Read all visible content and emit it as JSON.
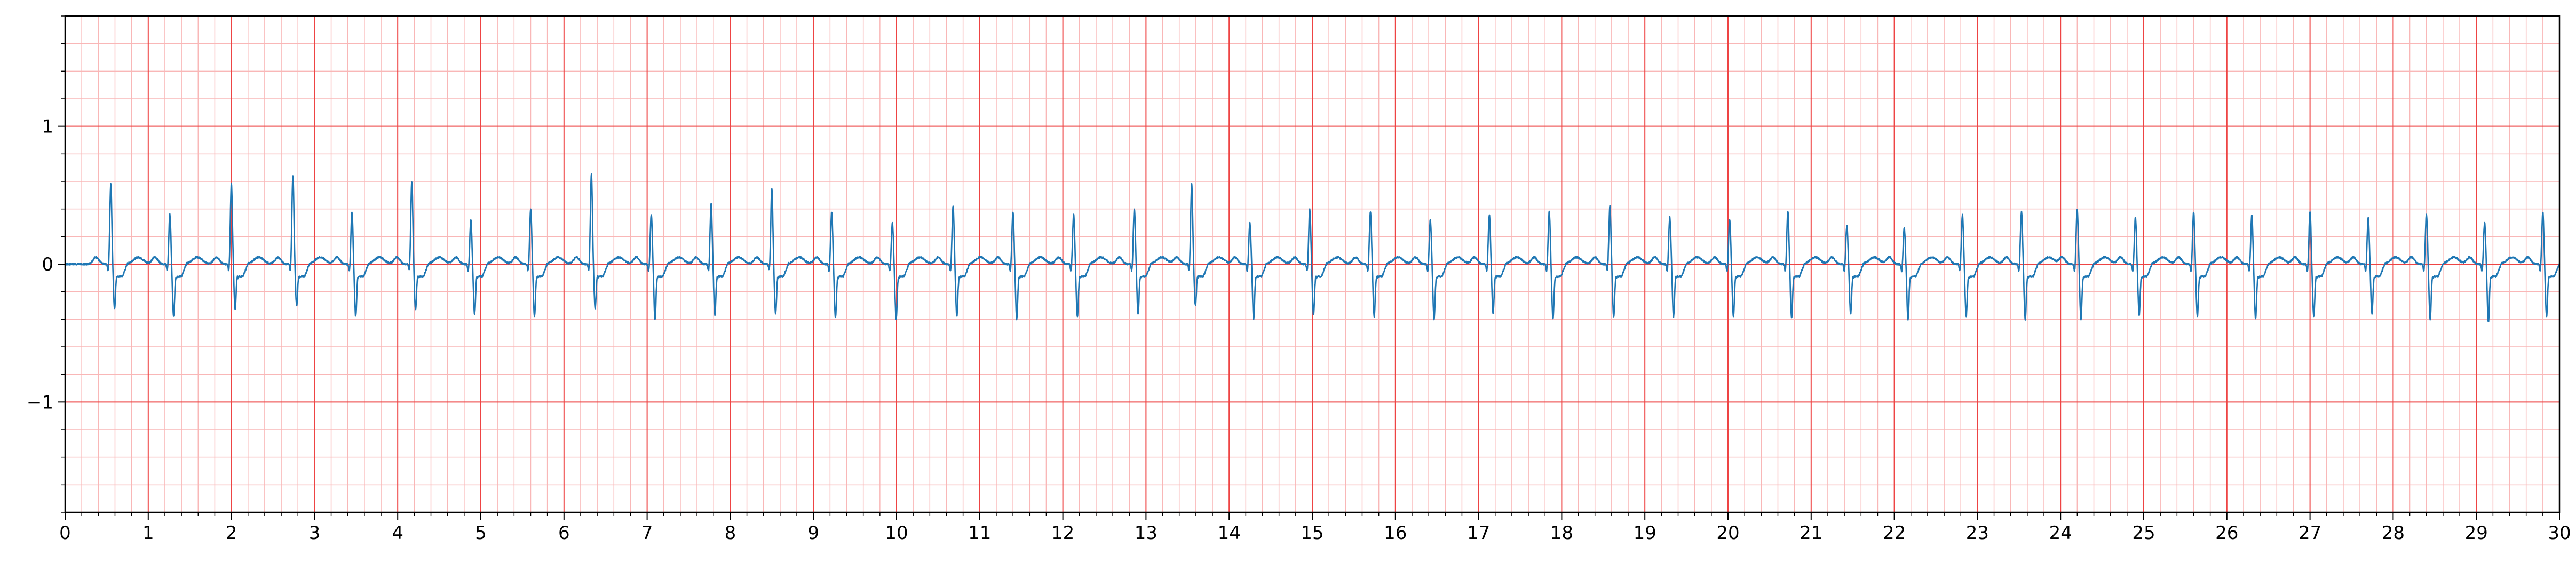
{
  "chart_data": {
    "type": "line",
    "title": "",
    "xlabel": "",
    "ylabel": "",
    "xlim": [
      0,
      30
    ],
    "ylim": [
      -1.8,
      1.8
    ],
    "x_ticks": [
      0,
      1,
      2,
      3,
      4,
      5,
      6,
      7,
      8,
      9,
      10,
      11,
      12,
      13,
      14,
      15,
      16,
      17,
      18,
      19,
      20,
      21,
      22,
      23,
      24,
      25,
      26,
      27,
      28,
      29,
      30
    ],
    "x_tick_labels": [
      "0",
      "1",
      "2",
      "3",
      "4",
      "5",
      "6",
      "7",
      "8",
      "9",
      "10",
      "11",
      "12",
      "13",
      "14",
      "15",
      "16",
      "17",
      "18",
      "19",
      "20",
      "21",
      "22",
      "23",
      "24",
      "25",
      "26",
      "27",
      "28",
      "29",
      "30"
    ],
    "y_ticks": [
      -1,
      0,
      1
    ],
    "y_tick_labels": [
      "−1",
      "0",
      "1"
    ],
    "grid": "ECG paper: major grid every 1 s and 1 unit, minor grid every 0.2 s and 0.2 units",
    "legend": "none",
    "colors": {
      "trace": "#1f77b4",
      "grid_major": "#ee4444",
      "grid_minor": "#f9b7b7",
      "axes": "#000000"
    },
    "series": [
      {
        "name": "",
        "beat_times": [
          0.55,
          1.26,
          2.0,
          2.74,
          3.45,
          4.17,
          4.88,
          5.6,
          6.33,
          7.05,
          7.77,
          8.5,
          9.22,
          9.95,
          10.68,
          11.4,
          12.13,
          12.86,
          13.55,
          14.25,
          14.97,
          15.7,
          16.42,
          17.13,
          17.85,
          18.58,
          19.3,
          20.02,
          20.72,
          21.43,
          22.12,
          22.82,
          23.53,
          24.2,
          24.9,
          25.6,
          26.3,
          27.0,
          27.7,
          28.4,
          29.1,
          29.8
        ],
        "r_peaks": [
          0.58,
          0.36,
          0.58,
          0.64,
          0.38,
          0.6,
          0.32,
          0.4,
          0.65,
          0.36,
          0.44,
          0.55,
          0.38,
          0.3,
          0.42,
          0.38,
          0.36,
          0.4,
          0.58,
          0.3,
          0.4,
          0.38,
          0.32,
          0.36,
          0.38,
          0.42,
          0.34,
          0.32,
          0.38,
          0.28,
          0.26,
          0.36,
          0.38,
          0.4,
          0.34,
          0.38,
          0.36,
          0.38,
          0.34,
          0.36,
          0.3,
          0.38
        ],
        "s_troughs": [
          -0.32,
          -0.38,
          -0.33,
          -0.3,
          -0.38,
          -0.33,
          -0.36,
          -0.38,
          -0.32,
          -0.4,
          -0.37,
          -0.36,
          -0.39,
          -0.4,
          -0.38,
          -0.4,
          -0.38,
          -0.36,
          -0.3,
          -0.4,
          -0.37,
          -0.38,
          -0.4,
          -0.36,
          -0.4,
          -0.38,
          -0.38,
          -0.38,
          -0.39,
          -0.36,
          -0.4,
          -0.38,
          -0.4,
          -0.4,
          -0.37,
          -0.38,
          -0.4,
          -0.38,
          -0.36,
          -0.4,
          -0.42,
          -0.38
        ],
        "baseline": 0.0
      }
    ]
  }
}
